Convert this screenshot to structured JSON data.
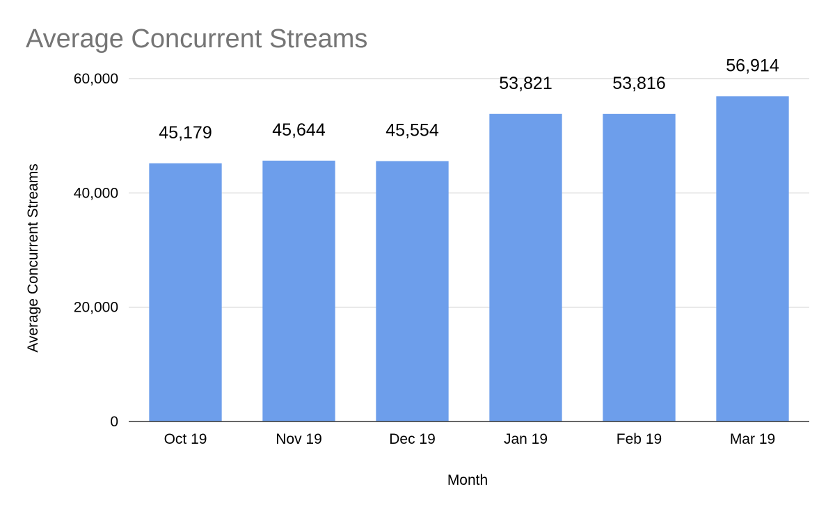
{
  "chart_data": {
    "type": "bar",
    "title": "Average Concurrent Streams",
    "xlabel": "Month",
    "ylabel": "Average Concurrent Streams",
    "categories": [
      "Oct 19",
      "Nov 19",
      "Dec 19",
      "Jan 19",
      "Feb 19",
      "Mar 19"
    ],
    "series": [
      {
        "values": [
          45179,
          45644,
          45554,
          53821,
          53816,
          56914
        ],
        "data_labels": [
          "45,179",
          "45,644",
          "45,554",
          "53,821",
          "53,816",
          "56,914"
        ],
        "color": "#6d9eeb"
      }
    ],
    "ylim": [
      0,
      60000
    ],
    "yticks": [
      0,
      20000,
      40000,
      60000
    ],
    "ytick_labels": [
      "0",
      "20,000",
      "40,000",
      "60,000"
    ],
    "grid": true,
    "legend": "none"
  }
}
